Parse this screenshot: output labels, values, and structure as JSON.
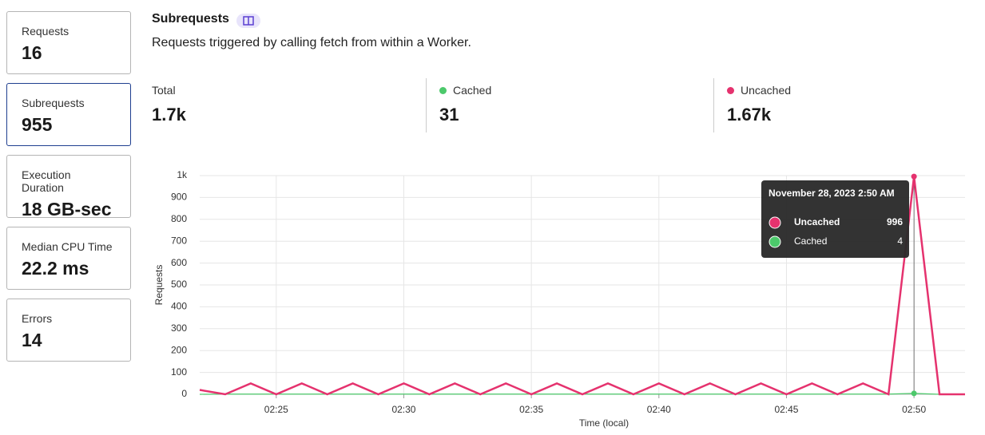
{
  "sidebar": [
    {
      "label": "Requests",
      "value": "16"
    },
    {
      "label": "Subrequests",
      "value": "955"
    },
    {
      "label": "Execution Duration",
      "value": "18 GB-sec"
    },
    {
      "label": "Median CPU Time",
      "value": "22.2 ms"
    },
    {
      "label": "Errors",
      "value": "14"
    }
  ],
  "header": {
    "title": "Subrequests",
    "description": "Requests triggered by calling fetch from within a Worker."
  },
  "stats": [
    {
      "label": "Total",
      "value": "1.7k"
    },
    {
      "label": "Cached",
      "value": "31",
      "color": "#4cc96b"
    },
    {
      "label": "Uncached",
      "value": "1.67k",
      "color": "#e5326e"
    }
  ],
  "chart_data": {
    "type": "line",
    "x_label": "Time (local)",
    "y_label": "Requests",
    "categories": [
      null,
      null,
      null,
      "02:25",
      null,
      null,
      null,
      null,
      "02:30",
      null,
      null,
      null,
      null,
      "02:35",
      null,
      null,
      null,
      null,
      "02:40",
      null,
      null,
      null,
      null,
      "02:45",
      null,
      null,
      null,
      null,
      "02:50",
      null,
      null
    ],
    "series": [
      {
        "name": "Uncached",
        "color": "#e5326e",
        "values": [
          20,
          0,
          50,
          0,
          50,
          0,
          50,
          0,
          50,
          0,
          50,
          0,
          50,
          0,
          50,
          0,
          50,
          0,
          50,
          0,
          50,
          0,
          50,
          0,
          50,
          0,
          50,
          0,
          996,
          0,
          0
        ]
      },
      {
        "name": "Cached",
        "color": "#4cc96b",
        "values": [
          0,
          1,
          1,
          1,
          1,
          1,
          1,
          1,
          1,
          1,
          1,
          1,
          1,
          1,
          1,
          1,
          1,
          1,
          1,
          1,
          1,
          1,
          1,
          1,
          1,
          1,
          1,
          1,
          4,
          0,
          0
        ]
      }
    ],
    "ylim": [
      0,
      1000
    ],
    "yticks": [
      0,
      100,
      200,
      300,
      400,
      500,
      600,
      700,
      800,
      900,
      {
        "value": 1000,
        "label": "1k"
      }
    ],
    "grid": true,
    "tooltip": {
      "title": "November 28, 2023 2:50 AM",
      "index": 28
    }
  }
}
